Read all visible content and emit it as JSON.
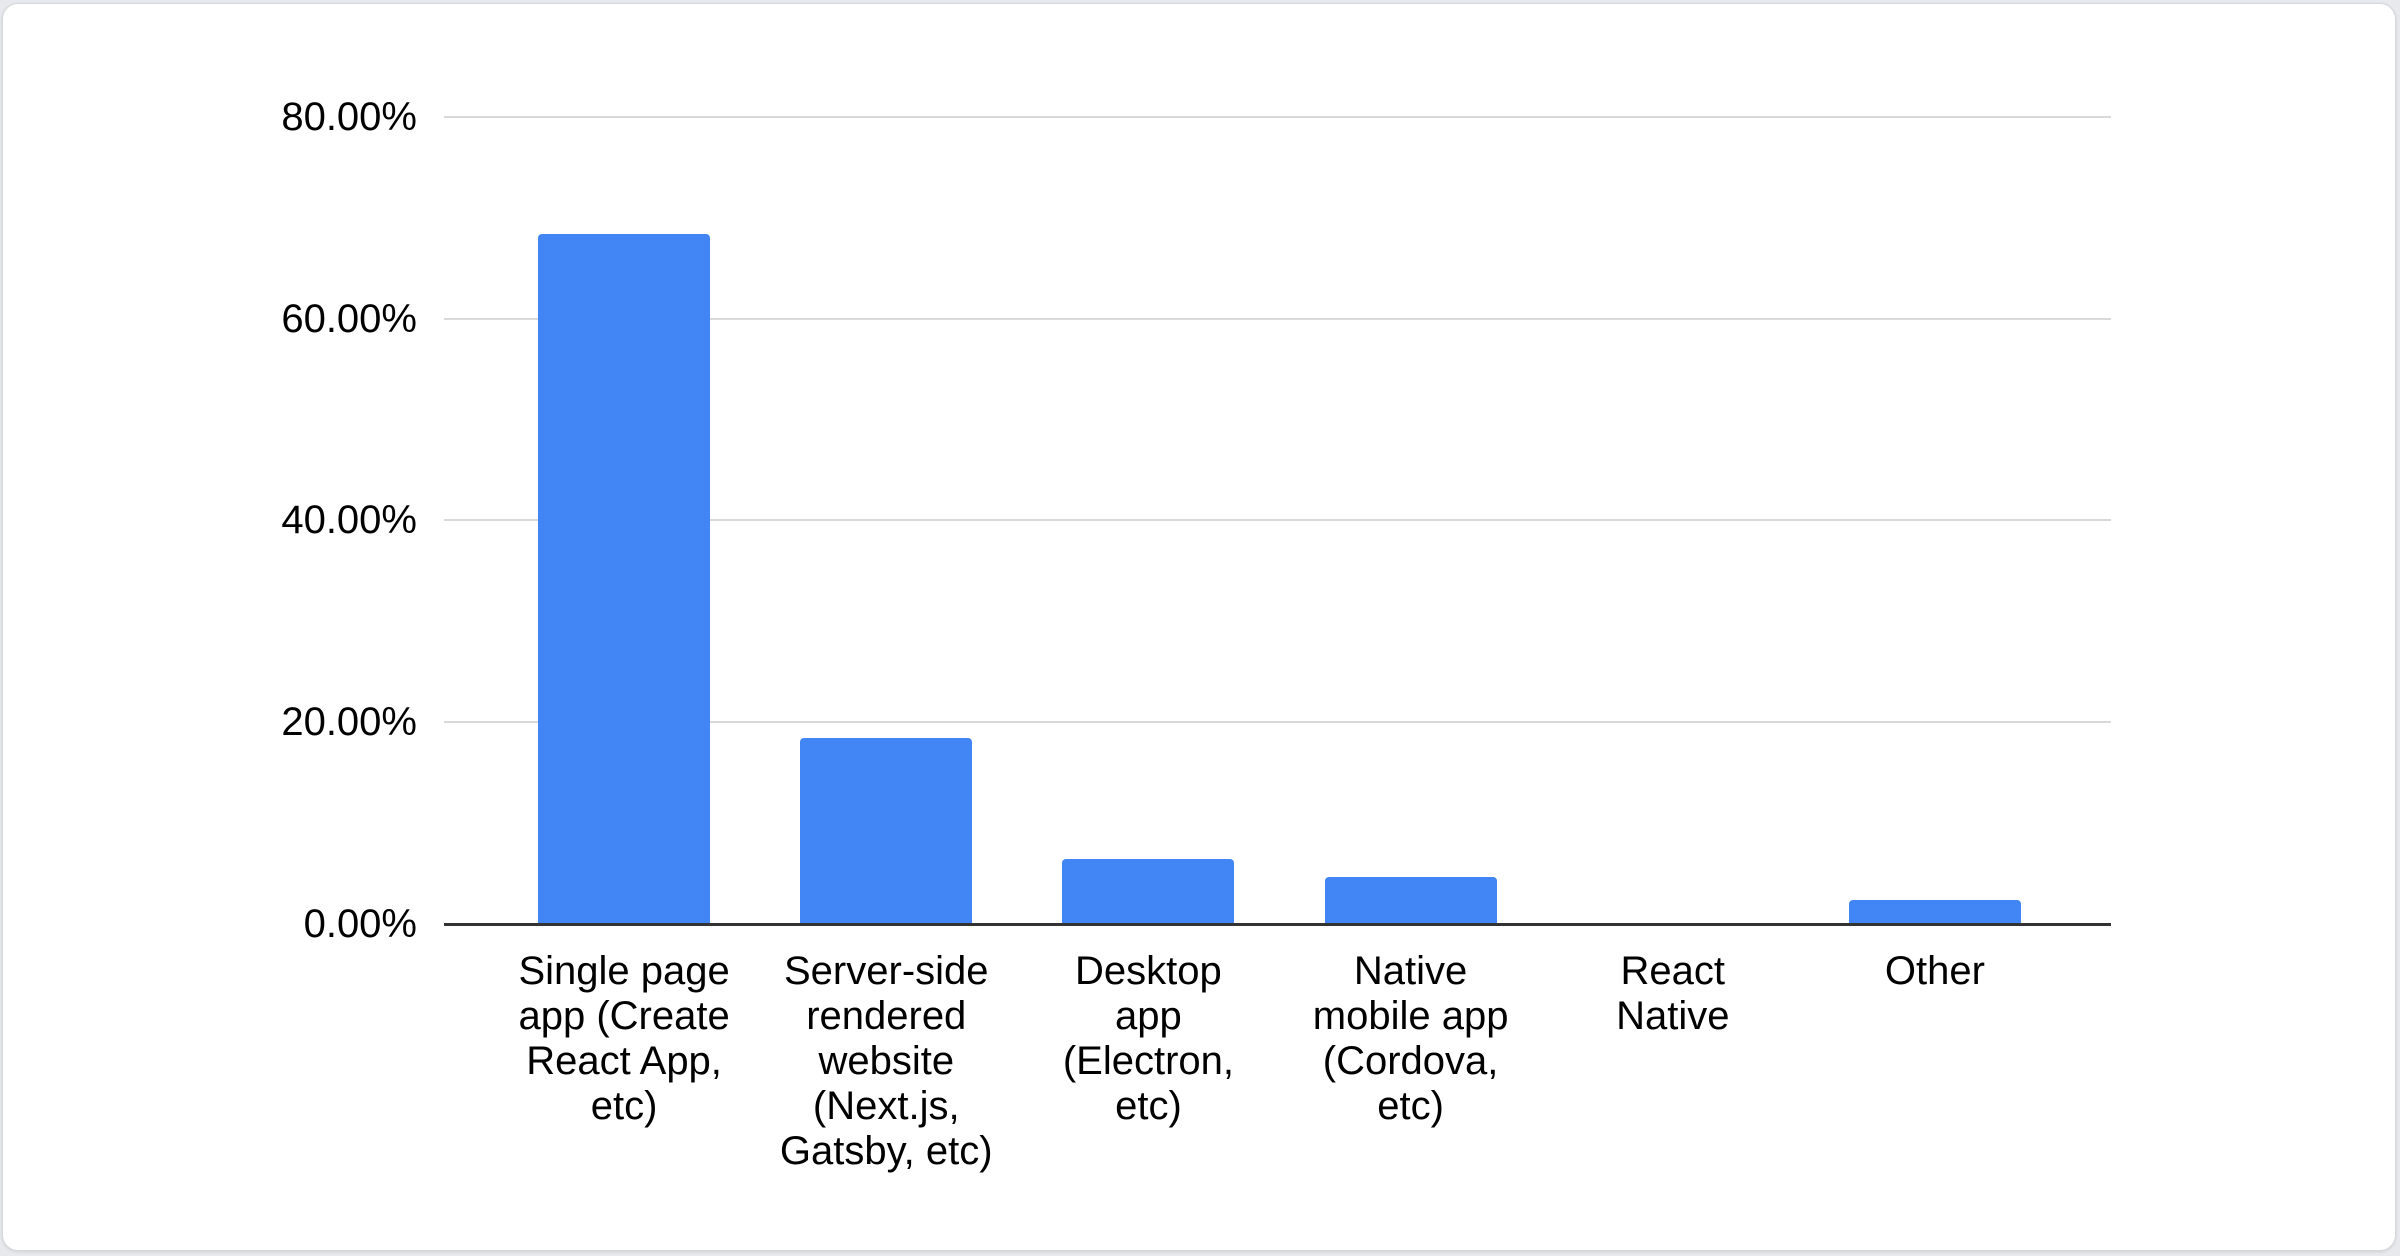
{
  "page": {
    "background_color": "#e7e9ed",
    "card_background_color": "#ffffff",
    "card_border_color": "#d5d8dd"
  },
  "chart_data": {
    "type": "bar",
    "categories": [
      "Single page\napp (Create\nReact App,\netc)",
      "Server-side\nrendered\nwebsite\n(Next.js,\nGatsby, etc)",
      "Desktop\napp\n(Electron,\netc)",
      "Native\nmobile app\n(Cordova,\netc)",
      "React\nNative",
      "Other"
    ],
    "values": [
      68.4,
      18.4,
      6.4,
      4.7,
      0,
      2.4
    ],
    "title": "",
    "xlabel": "",
    "ylabel": "",
    "ylim": [
      0,
      80
    ],
    "yticks": [
      0,
      20,
      40,
      60,
      80
    ],
    "ytick_labels": [
      "0.00%",
      "20.00%",
      "40.00%",
      "60.00%",
      "80.00%"
    ],
    "grid": true,
    "legend_position": "none",
    "bar_color": "#4285f4",
    "gridline_color": "#d9d9d9",
    "axis_line_color": "#333333",
    "label_color": "#000000"
  }
}
